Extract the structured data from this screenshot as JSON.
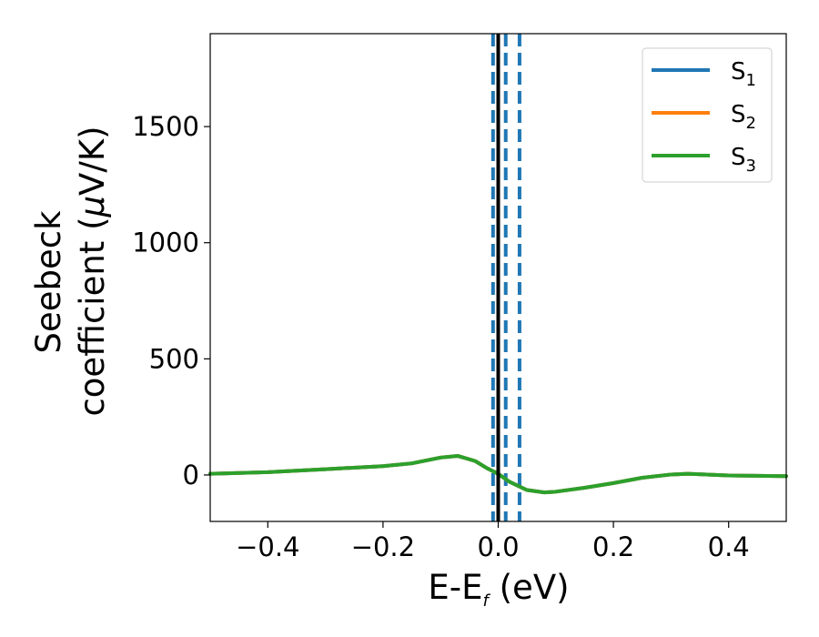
{
  "chart_data": {
    "type": "line",
    "title": "",
    "xlabel": {
      "main": "E-E",
      "sub": "f",
      "unit": " (eV)"
    },
    "ylabel": {
      "line1": "Seebeck",
      "line2_main": "coefficient  (",
      "mu": "μ",
      "line2_unit": "V/K)"
    },
    "xlim": [
      -0.5,
      0.5
    ],
    "ylim": [
      -200,
      1900
    ],
    "x_ticks": [
      -0.4,
      -0.2,
      0.0,
      0.2,
      0.4
    ],
    "x_tick_labels": [
      "−0.4",
      "−0.2",
      "0.0",
      "0.2",
      "0.4"
    ],
    "y_ticks": [
      0,
      500,
      1000,
      1500
    ],
    "y_tick_labels": [
      "0",
      "500",
      "1000",
      "1500"
    ],
    "legend_placement": "top-right",
    "grid": false,
    "series": [
      {
        "name": "S",
        "sub": "1",
        "color": "#1f77b4",
        "x": [
          -0.5,
          -0.4,
          -0.3,
          -0.2,
          -0.15,
          -0.1,
          -0.07,
          -0.04,
          -0.02,
          0.0,
          0.02,
          0.05,
          0.08,
          0.1,
          0.15,
          0.2,
          0.25,
          0.3,
          0.33,
          0.4,
          0.5
        ],
        "y": [
          5,
          12,
          25,
          38,
          50,
          75,
          82,
          60,
          30,
          5,
          -30,
          -65,
          -75,
          -72,
          -55,
          -35,
          -12,
          2,
          5,
          -2,
          -5
        ]
      },
      {
        "name": "S",
        "sub": "2",
        "color": "#ff7f0e",
        "x": [
          -0.5,
          -0.4,
          -0.3,
          -0.2,
          -0.15,
          -0.1,
          -0.07,
          -0.04,
          -0.02,
          0.0,
          0.02,
          0.05,
          0.08,
          0.1,
          0.15,
          0.2,
          0.25,
          0.3,
          0.33,
          0.4,
          0.5
        ],
        "y": [
          5,
          12,
          25,
          38,
          50,
          75,
          82,
          60,
          30,
          5,
          -30,
          -65,
          -75,
          -72,
          -55,
          -35,
          -12,
          2,
          5,
          -2,
          -5
        ]
      },
      {
        "name": "S",
        "sub": "3",
        "color": "#2ca02c",
        "x": [
          -0.5,
          -0.4,
          -0.3,
          -0.2,
          -0.15,
          -0.1,
          -0.07,
          -0.04,
          -0.02,
          0.0,
          0.02,
          0.05,
          0.08,
          0.1,
          0.15,
          0.2,
          0.25,
          0.3,
          0.33,
          0.4,
          0.5
        ],
        "y": [
          5,
          12,
          25,
          38,
          50,
          75,
          82,
          60,
          30,
          5,
          -30,
          -65,
          -75,
          -72,
          -55,
          -35,
          -12,
          2,
          5,
          -2,
          -5
        ]
      }
    ],
    "vlines": [
      {
        "x": 0.0,
        "style": "solid",
        "color": "#000000"
      },
      {
        "x": -0.009,
        "style": "dashed",
        "color": "#1f77b4"
      },
      {
        "x": 0.013,
        "style": "dashed",
        "color": "#1f77b4"
      },
      {
        "x": 0.037,
        "style": "dashed",
        "color": "#1f77b4"
      }
    ]
  }
}
